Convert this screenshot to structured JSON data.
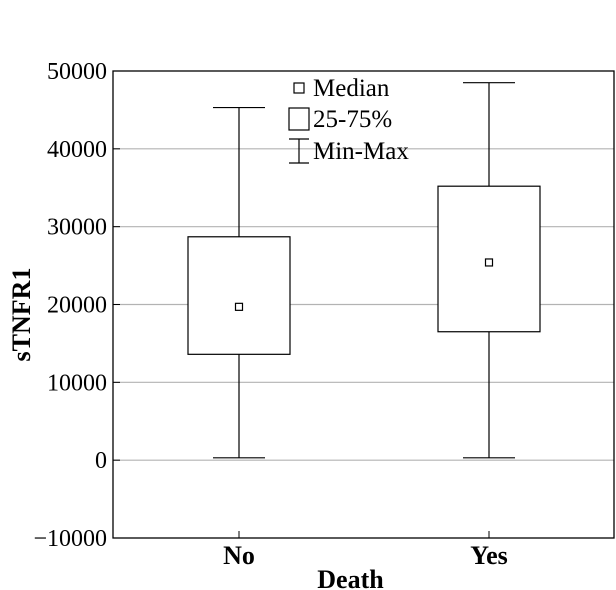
{
  "chart_data": {
    "type": "boxplot",
    "xlabel": "Death",
    "ylabel": "sTNFR1",
    "ylim": [
      -10000,
      50000
    ],
    "yticks": [
      -10000,
      0,
      10000,
      20000,
      30000,
      40000,
      50000
    ],
    "ytick_labels": [
      "−10000",
      "0",
      "10000",
      "20000",
      "30000",
      "40000",
      "50000"
    ],
    "grid": "horizontal",
    "categories": [
      "No",
      "Yes"
    ],
    "boxes": [
      {
        "category": "No",
        "min": 300,
        "q1": 13600,
        "median": 19700,
        "q3": 28700,
        "max": 45300
      },
      {
        "category": "Yes",
        "min": 300,
        "q1": 16500,
        "median": 25400,
        "q3": 35200,
        "max": 48500
      }
    ],
    "legend": {
      "placement": "top-center",
      "entries": [
        {
          "symbol": "small-square",
          "label": "Median"
        },
        {
          "symbol": "large-square",
          "label": "25-75%"
        },
        {
          "symbol": "whisker",
          "label": "Min-Max"
        }
      ]
    },
    "colors": {
      "stroke": "#000000",
      "grid": "#b3b3b3",
      "box_fill": "#ffffff"
    }
  }
}
